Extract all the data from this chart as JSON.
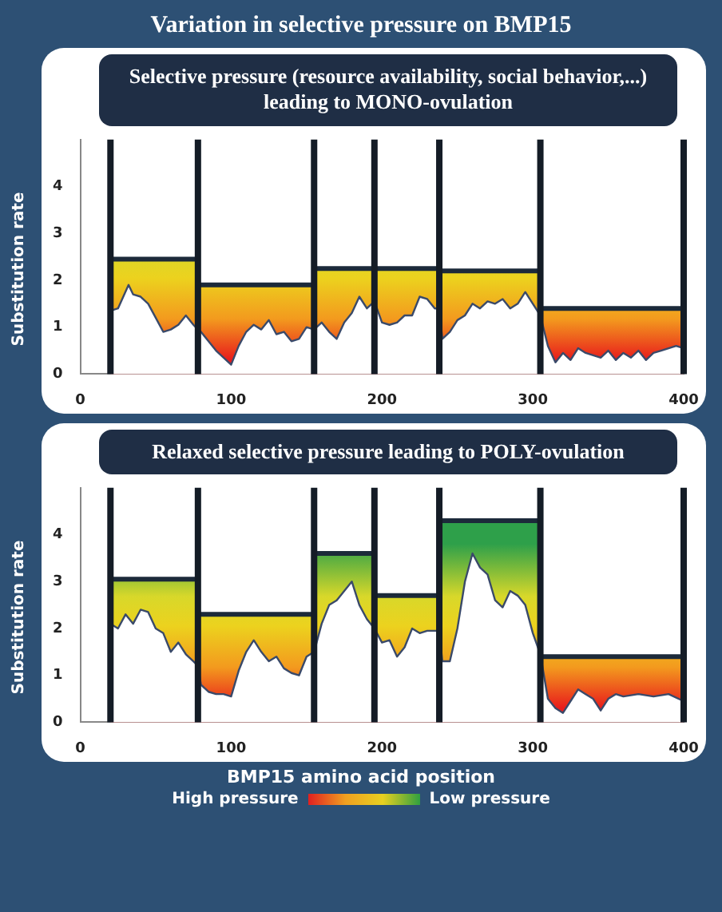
{
  "chart_data": [
    {
      "type": "line",
      "title": "Variation in selective pressure on BMP15",
      "subtitle": "Selective pressure (resource availability, social behavior,...) leading to MONO-ovulation",
      "ylabel": "Substitution rate",
      "xlim": [
        0,
        400
      ],
      "xticks": [
        0,
        100,
        200,
        300,
        400
      ],
      "ylim": [
        0,
        5
      ],
      "yticks": [
        0,
        1,
        2,
        3,
        4
      ],
      "grid": false,
      "legend": false,
      "marker": "none",
      "ref_lines": [
        {
          "axis": "x",
          "value": 20,
          "color": "#141c26"
        },
        {
          "axis": "x",
          "value": 78,
          "color": "#141c26"
        },
        {
          "axis": "x",
          "value": 155,
          "color": "#141c26"
        },
        {
          "axis": "x",
          "value": 195,
          "color": "#141c26"
        },
        {
          "axis": "x",
          "value": 238,
          "color": "#141c26"
        },
        {
          "axis": "x",
          "value": 305,
          "color": "#141c26"
        },
        {
          "axis": "x",
          "value": 400,
          "color": "#141c26"
        }
      ],
      "series": [
        {
          "type": "area",
          "color": "#1c2a3a",
          "x": [
            20,
            78,
            78,
            155,
            155,
            195,
            195,
            238,
            238,
            305,
            305,
            400
          ],
          "values": [
            2.45,
            2.45,
            1.9,
            1.9,
            2.25,
            2.25,
            2.25,
            2.25,
            2.2,
            2.2,
            1.4,
            1.4
          ]
        },
        {
          "type": "area",
          "color": "#3a4a6a",
          "x": [
            20,
            25,
            32,
            35,
            40,
            45,
            50,
            55,
            60,
            65,
            70,
            75,
            78,
            80,
            85,
            90,
            95,
            100,
            105,
            110,
            115,
            120,
            125,
            130,
            135,
            140,
            145,
            150,
            155,
            160,
            165,
            170,
            175,
            180,
            185,
            190,
            195,
            200,
            205,
            210,
            215,
            220,
            225,
            230,
            235,
            238,
            240,
            245,
            250,
            255,
            260,
            265,
            270,
            275,
            280,
            285,
            290,
            295,
            300,
            305,
            310,
            315,
            320,
            325,
            330,
            335,
            340,
            345,
            350,
            355,
            360,
            365,
            370,
            375,
            380,
            385,
            390,
            395,
            400
          ],
          "values": [
            1.35,
            1.4,
            1.9,
            1.7,
            1.65,
            1.5,
            1.2,
            0.9,
            0.95,
            1.05,
            1.25,
            1.05,
            0.95,
            0.9,
            0.7,
            0.5,
            0.35,
            0.2,
            0.6,
            0.9,
            1.05,
            0.95,
            1.15,
            0.85,
            0.9,
            0.7,
            0.75,
            1.0,
            0.95,
            1.1,
            0.9,
            0.75,
            1.1,
            1.3,
            1.65,
            1.4,
            1.55,
            1.1,
            1.05,
            1.1,
            1.25,
            1.25,
            1.65,
            1.6,
            1.4,
            1.4,
            0.75,
            0.9,
            1.15,
            1.25,
            1.5,
            1.4,
            1.55,
            1.5,
            1.6,
            1.4,
            1.5,
            1.75,
            1.5,
            1.25,
            0.6,
            0.25,
            0.45,
            0.3,
            0.55,
            0.45,
            0.4,
            0.35,
            0.5,
            0.3,
            0.45,
            0.35,
            0.5,
            0.3,
            0.45,
            0.5,
            0.55,
            0.6,
            0.55
          ]
        }
      ]
    },
    {
      "type": "line",
      "title": "Relaxed selective pressure leading to POLY-ovulation",
      "xlabel": "BMP15 amino acid position",
      "ylabel": "Substitution rate",
      "xlim": [
        0,
        400
      ],
      "xticks": [
        0,
        100,
        200,
        300,
        400
      ],
      "ylim": [
        0,
        5
      ],
      "yticks": [
        0,
        1,
        2,
        3,
        4
      ],
      "grid": false,
      "legend": false,
      "marker": "none",
      "annotations": [
        "High pressure",
        "Low pressure"
      ],
      "ref_lines": [
        {
          "axis": "x",
          "value": 20,
          "color": "#141c26"
        },
        {
          "axis": "x",
          "value": 78,
          "color": "#141c26"
        },
        {
          "axis": "x",
          "value": 155,
          "color": "#141c26"
        },
        {
          "axis": "x",
          "value": 195,
          "color": "#141c26"
        },
        {
          "axis": "x",
          "value": 238,
          "color": "#141c26"
        },
        {
          "axis": "x",
          "value": 305,
          "color": "#141c26"
        },
        {
          "axis": "x",
          "value": 400,
          "color": "#141c26"
        }
      ],
      "series": [
        {
          "type": "area",
          "color": "#1c2a3a",
          "x": [
            20,
            78,
            78,
            155,
            155,
            195,
            195,
            238,
            238,
            305,
            305,
            400
          ],
          "values": [
            3.05,
            3.05,
            2.3,
            2.3,
            3.6,
            3.6,
            2.7,
            2.7,
            4.3,
            4.3,
            1.4,
            1.4
          ]
        },
        {
          "type": "area",
          "color": "#3a4a6a",
          "x": [
            20,
            25,
            30,
            35,
            40,
            45,
            50,
            55,
            60,
            65,
            70,
            75,
            78,
            80,
            85,
            90,
            95,
            100,
            105,
            110,
            115,
            120,
            125,
            130,
            135,
            140,
            145,
            150,
            155,
            160,
            165,
            170,
            175,
            180,
            185,
            190,
            195,
            200,
            205,
            210,
            215,
            220,
            225,
            230,
            238,
            240,
            245,
            250,
            255,
            260,
            265,
            270,
            275,
            280,
            285,
            290,
            295,
            300,
            305,
            310,
            315,
            320,
            325,
            330,
            335,
            340,
            345,
            350,
            355,
            360,
            370,
            380,
            390,
            400
          ],
          "values": [
            2.1,
            2.0,
            2.3,
            2.1,
            2.4,
            2.35,
            2.0,
            1.9,
            1.5,
            1.7,
            1.45,
            1.3,
            1.2,
            0.8,
            0.65,
            0.6,
            0.6,
            0.55,
            1.1,
            1.5,
            1.75,
            1.5,
            1.3,
            1.4,
            1.15,
            1.05,
            1.0,
            1.4,
            1.5,
            2.1,
            2.5,
            2.6,
            2.8,
            3.0,
            2.5,
            2.2,
            2.0,
            1.7,
            1.75,
            1.4,
            1.6,
            2.0,
            1.9,
            1.95,
            1.95,
            1.3,
            1.3,
            2.0,
            3.0,
            3.6,
            3.3,
            3.15,
            2.6,
            2.45,
            2.8,
            2.7,
            2.5,
            1.9,
            1.45,
            0.5,
            0.3,
            0.2,
            0.45,
            0.7,
            0.6,
            0.5,
            0.25,
            0.5,
            0.6,
            0.55,
            0.6,
            0.55,
            0.6,
            0.45
          ]
        }
      ]
    }
  ]
}
